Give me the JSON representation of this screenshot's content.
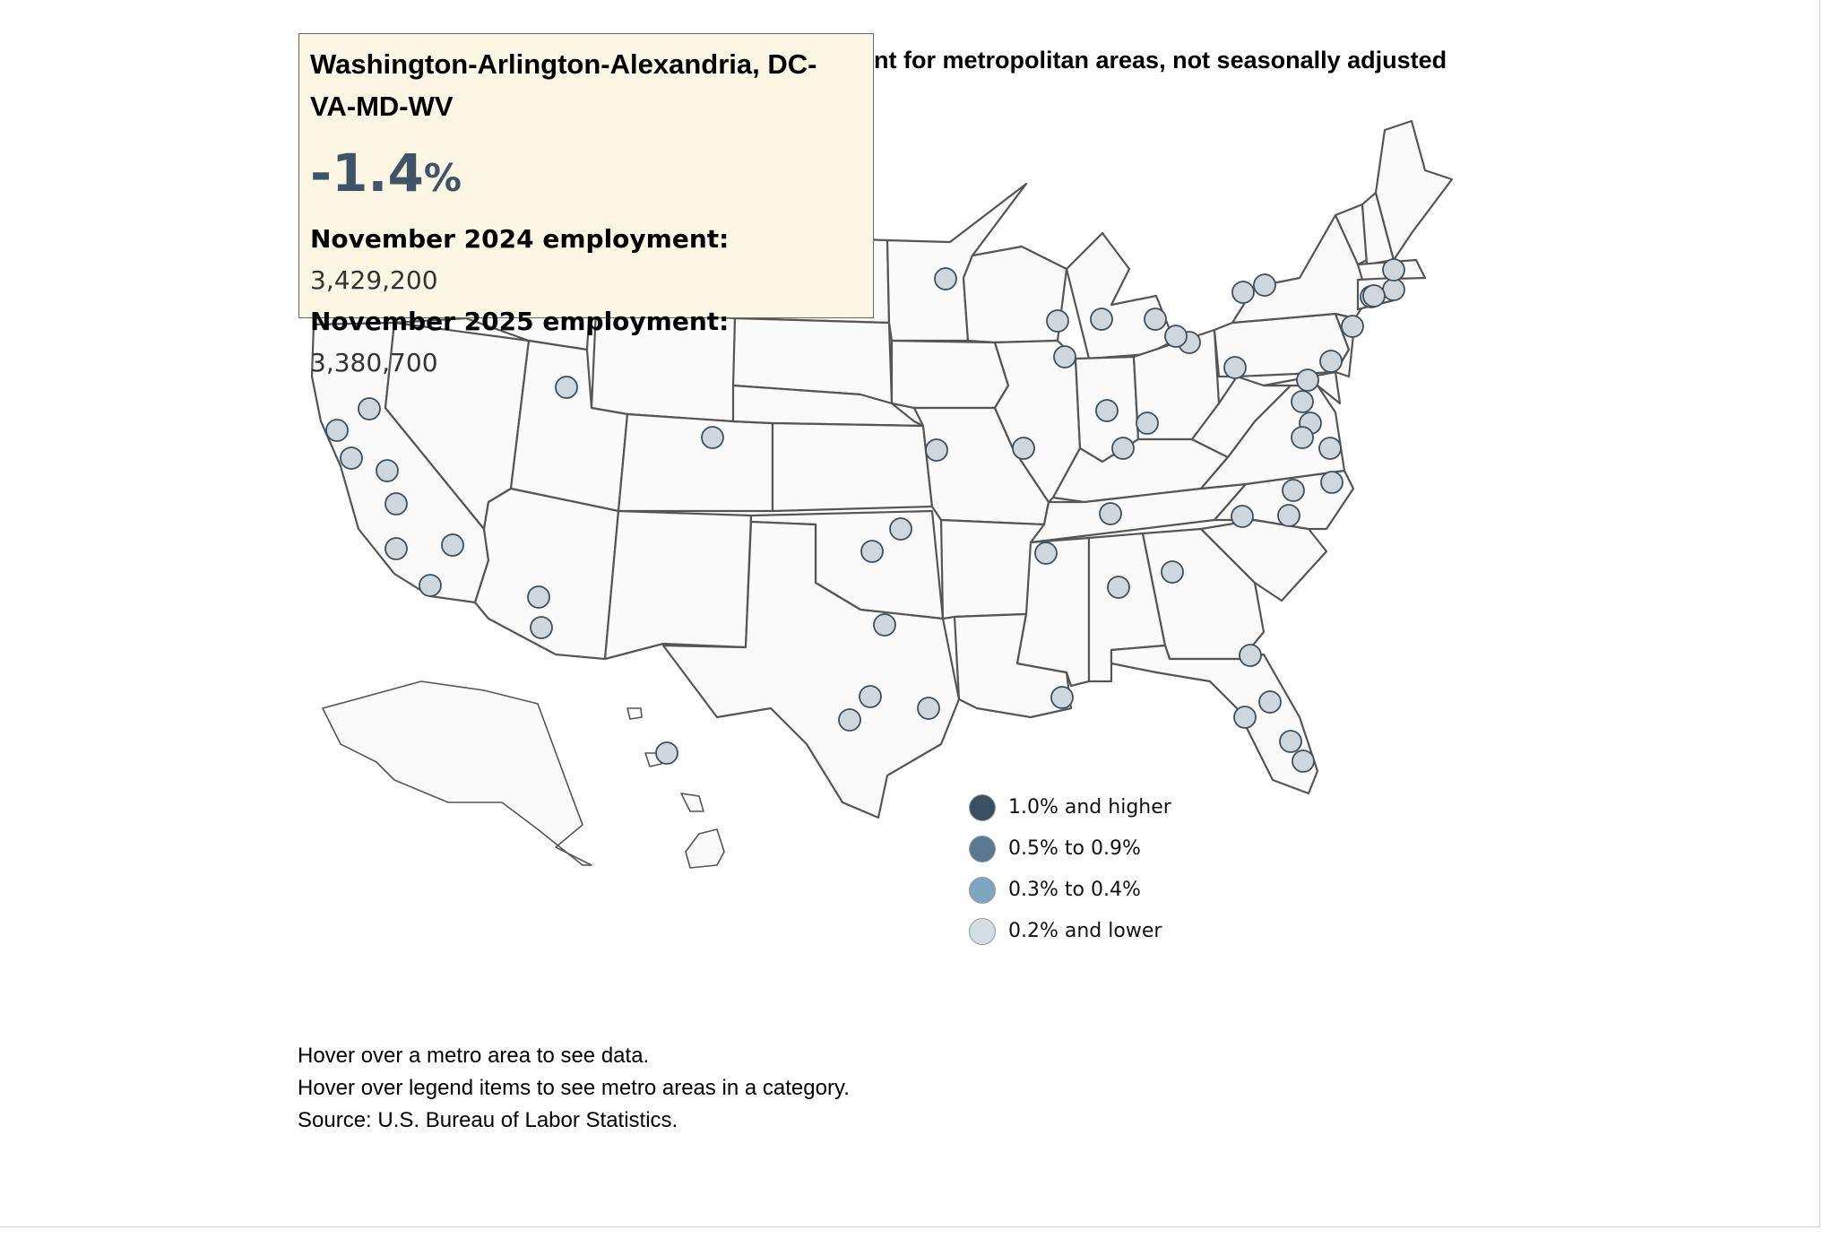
{
  "chart": {
    "title_visible_portion": "ent for metropolitan areas, not seasonally adjusted"
  },
  "tooltip": {
    "metro_name": "Washington-Arlington-Alexandria, DC-VA-MD-WV",
    "change_value": "-1.4",
    "change_unit": "%",
    "row_2024_label": "November 2024 employment:",
    "row_2024_value": "3,429,200",
    "row_2025_label": "November 2025 employment:",
    "row_2025_value": "3,380,700"
  },
  "legend": {
    "items": [
      {
        "label": "1.0% and higher",
        "color": "#3b4f63"
      },
      {
        "label": "0.5% to 0.9%",
        "color": "#5b7a91"
      },
      {
        "label": "0.3% to 0.4%",
        "color": "#7fa6c0"
      },
      {
        "label": "0.2% and lower",
        "color": "#d2dde4"
      }
    ]
  },
  "notes": {
    "line1": "Hover over a metro area to see data.",
    "line2": "Hover over legend items to see metro areas in a category.",
    "line3": "Source: U.S. Bureau of Labor Statistics."
  },
  "colors": {
    "tooltip_background": "#fcf6e4",
    "change_text": "#3f5466",
    "metro_fill_tint": "#cfd6dc",
    "state_fill": "#fafafa",
    "state_stroke": "#555555"
  }
}
